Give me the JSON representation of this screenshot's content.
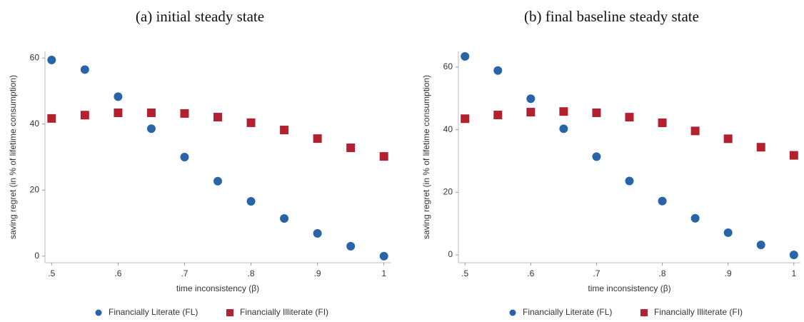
{
  "chart_data": [
    {
      "type": "scatter",
      "title": "(a) initial steady state",
      "x_label": "time inconsistency (β)",
      "y_label": "saving regret (in % of lifetime consumption)",
      "x": [
        0.5,
        0.55,
        0.6,
        0.65,
        0.7,
        0.75,
        0.8,
        0.85,
        0.9,
        0.95,
        1
      ],
      "series": [
        {
          "name": "Financially Literate (FL)",
          "color": "#2a64a8",
          "marker": "circle",
          "values": [
            59.4,
            56.5,
            48.3,
            38.6,
            30,
            22.7,
            16.6,
            11.4,
            6.9,
            3,
            0
          ]
        },
        {
          "name": "Financially Illiterate (FI)",
          "color": "#b3202f",
          "marker": "square",
          "values": [
            41.7,
            42.7,
            43.4,
            43.4,
            43.2,
            42.1,
            40.4,
            38.2,
            35.6,
            32.8,
            30.2
          ]
        }
      ],
      "xlim": [
        0.49,
        1.01
      ],
      "ylim": [
        -2,
        62
      ],
      "xticks": [
        {
          "value": 0.5,
          "label": ".5"
        },
        {
          "value": 0.6,
          "label": ".6"
        },
        {
          "value": 0.7,
          "label": ".7"
        },
        {
          "value": 0.8,
          "label": ".8"
        },
        {
          "value": 0.9,
          "label": ".9"
        },
        1
      ],
      "yticks": [
        0,
        20,
        40,
        60
      ],
      "grid": false,
      "legend": "bottom"
    },
    {
      "type": "scatter",
      "title": "(b) final baseline steady state",
      "x_label": "time inconsistency (β)",
      "y_label": "saving regret (in % of lifetime consumption)",
      "x": [
        0.5,
        0.55,
        0.6,
        0.65,
        0.7,
        0.75,
        0.8,
        0.85,
        0.9,
        0.95,
        1
      ],
      "series": [
        {
          "name": "Financially Literate (FL)",
          "color": "#2a64a8",
          "marker": "circle",
          "values": [
            63.4,
            58.9,
            49.9,
            40.3,
            31.4,
            23.6,
            17.2,
            11.7,
            7.1,
            3.2,
            0
          ]
        },
        {
          "name": "Financially Illiterate (FI)",
          "color": "#b3202f",
          "marker": "square",
          "values": [
            43.5,
            44.7,
            45.6,
            45.8,
            45.4,
            44,
            42.2,
            39.6,
            37.1,
            34.4,
            31.8
          ]
        }
      ],
      "xlim": [
        0.49,
        1.01
      ],
      "ylim": [
        -2.5,
        65
      ],
      "xticks": [
        {
          "value": 0.5,
          "label": ".5"
        },
        {
          "value": 0.6,
          "label": ".6"
        },
        {
          "value": 0.7,
          "label": ".7"
        },
        {
          "value": 0.8,
          "label": ".8"
        },
        {
          "value": 0.9,
          "label": ".9"
        },
        1
      ],
      "yticks": [
        0,
        20,
        40,
        60
      ],
      "grid": false,
      "legend": "bottom"
    }
  ]
}
